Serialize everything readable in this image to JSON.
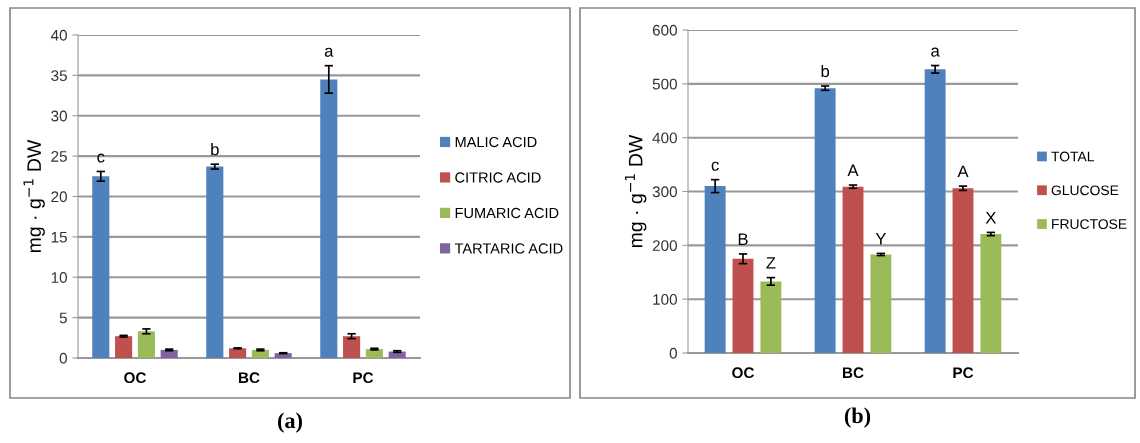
{
  "chart_data": [
    {
      "type": "bar",
      "title": "(a)",
      "ylabel": "mg · g$^{−1}$ DW",
      "categories": [
        "OC",
        "BC",
        "PC"
      ],
      "ylim": [
        0,
        40
      ],
      "yticks": [
        0,
        5,
        10,
        15,
        20,
        25,
        30,
        35,
        40
      ],
      "grid": "y",
      "legend": "right",
      "series": [
        {
          "name": "MALIC ACID",
          "color": "#4f81bd",
          "values": [
            22.5,
            23.7,
            34.5
          ],
          "errors": [
            0.6,
            0.3,
            1.7
          ],
          "value_labels": [
            "c",
            "b",
            "a"
          ]
        },
        {
          "name": "CITRIC ACID",
          "color": "#c0504d",
          "values": [
            2.7,
            1.2,
            2.7
          ],
          "errors": [
            0.1,
            0.05,
            0.3
          ]
        },
        {
          "name": "FUMARIC ACID",
          "color": "#9bbb59",
          "values": [
            3.3,
            1.0,
            1.1
          ],
          "errors": [
            0.3,
            0.1,
            0.1
          ]
        },
        {
          "name": "TARTARIC ACID",
          "color": "#8064a2",
          "values": [
            1.0,
            0.6,
            0.8
          ],
          "errors": [
            0.1,
            0.05,
            0.1
          ]
        }
      ]
    },
    {
      "type": "bar",
      "title": "(b)",
      "ylabel": "mg · g$^{−1}$ DW",
      "categories": [
        "OC",
        "BC",
        "PC"
      ],
      "ylim": [
        0,
        600
      ],
      "yticks": [
        0,
        100,
        200,
        300,
        400,
        500,
        600
      ],
      "grid": "y",
      "legend": "right",
      "series": [
        {
          "name": "TOTAL",
          "color": "#4f81bd",
          "values": [
            310,
            492,
            527
          ],
          "errors": [
            12,
            4,
            7
          ],
          "value_labels": [
            "c",
            "b",
            "a"
          ]
        },
        {
          "name": "GLUCOSE",
          "color": "#c0504d",
          "values": [
            175,
            309,
            306
          ],
          "errors": [
            9,
            3,
            4
          ],
          "value_labels": [
            "B",
            "A",
            "A"
          ]
        },
        {
          "name": "FRUCTOSE",
          "color": "#9bbb59",
          "values": [
            133,
            183,
            221
          ],
          "errors": [
            7,
            2,
            3
          ],
          "value_labels": [
            "Z",
            "Y",
            "X"
          ]
        }
      ]
    }
  ]
}
